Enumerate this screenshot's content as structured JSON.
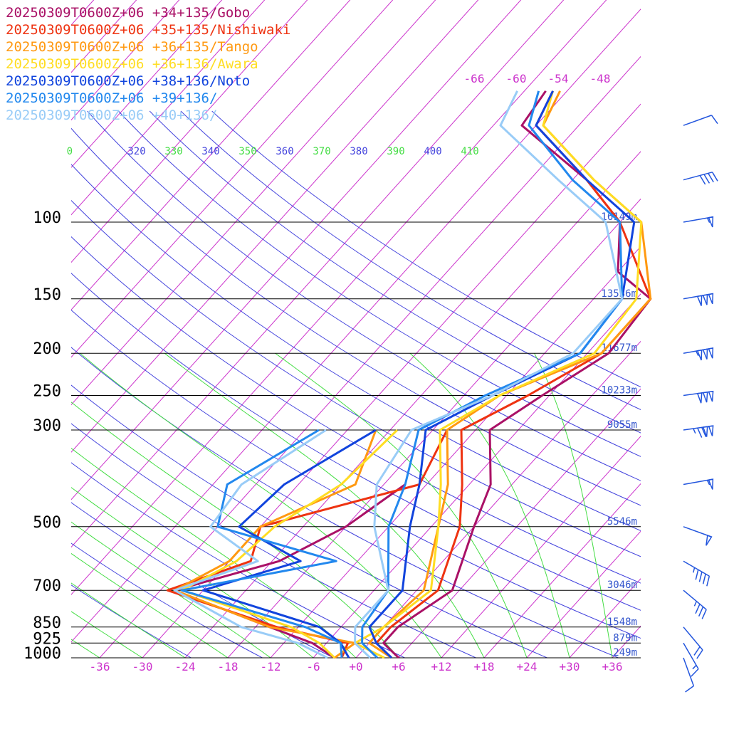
{
  "chart_data": {
    "type": "line",
    "legend_placement": "top-left",
    "x_unit_ticks": [
      "-36",
      "-30",
      "-24",
      "-18",
      "-12",
      "-6",
      "+0",
      "+6",
      "+12",
      "+18",
      "+24",
      "+30",
      "+36"
    ],
    "x_ticks": [
      -36,
      -30,
      -24,
      -18,
      -12,
      -6,
      0,
      6,
      12,
      18,
      24,
      30,
      36
    ],
    "top_ticks": [
      {
        "label": "-66",
        "value": -66
      },
      {
        "label": "-60",
        "value": -60
      },
      {
        "label": "-54",
        "value": -54
      },
      {
        "label": "-48",
        "value": -48
      }
    ],
    "pressure_levels": [
      {
        "p": 100,
        "label": "100",
        "height": "16149m"
      },
      {
        "p": 150,
        "label": "150",
        "height": "13536m"
      },
      {
        "p": 200,
        "label": "200",
        "height": "11677m"
      },
      {
        "p": 250,
        "label": "250",
        "height": "10233m"
      },
      {
        "p": 300,
        "label": "300",
        "height": "9055m"
      },
      {
        "p": 500,
        "label": "500",
        "height": "5546m"
      },
      {
        "p": 700,
        "label": "700",
        "height": "3046m"
      },
      {
        "p": 850,
        "label": "850",
        "height": "1548m"
      },
      {
        "p": 925,
        "label": "925",
        "height": "879m"
      },
      {
        "p": 1000,
        "label": "1000",
        "height": "249m"
      }
    ],
    "theta_labels": [
      "0",
      "320",
      "330",
      "340",
      "350",
      "360",
      "370",
      "380",
      "390",
      "400",
      "410"
    ],
    "colors": {
      "isotherm": "#cc33cc",
      "dry_adiabat": "#4444dd",
      "moist_adiabat": "#44dd44",
      "level_line": "#000000",
      "height_label": "#3355cc",
      "wind_barb": "#2255dd"
    },
    "series": [
      {
        "name": "20250309T0600Z+06 +34+135/Gobo",
        "color": "#aa1166",
        "T": [
          [
            1000,
            6
          ],
          [
            925,
            2
          ],
          [
            850,
            2
          ],
          [
            700,
            5
          ],
          [
            500,
            0
          ],
          [
            400,
            -3
          ],
          [
            300,
            -10
          ],
          [
            250,
            -7
          ],
          [
            200,
            -3
          ],
          [
            150,
            -4
          ],
          [
            130,
            -12
          ],
          [
            100,
            -18
          ],
          [
            80,
            -28
          ],
          [
            60,
            -44
          ],
          [
            50,
            -45
          ]
        ],
        "Td": [
          [
            1000,
            -3
          ],
          [
            925,
            -8
          ],
          [
            850,
            -16
          ],
          [
            700,
            -34
          ],
          [
            600,
            -23
          ],
          [
            500,
            -18
          ],
          [
            400,
            -15
          ]
        ]
      },
      {
        "name": "20250309T0600Z+06 +35+135/Nishiwaki",
        "color": "#ee3311",
        "T": [
          [
            1000,
            5
          ],
          [
            925,
            1
          ],
          [
            850,
            1
          ],
          [
            700,
            3
          ],
          [
            500,
            -2
          ],
          [
            400,
            -7
          ],
          [
            300,
            -14
          ],
          [
            250,
            -9
          ],
          [
            200,
            -4
          ],
          [
            150,
            -4
          ],
          [
            100,
            -18
          ],
          [
            80,
            -28
          ],
          [
            60,
            -42
          ],
          [
            50,
            -44
          ]
        ],
        "Td": [
          [
            1000,
            -2
          ],
          [
            925,
            -3
          ],
          [
            850,
            -15
          ],
          [
            700,
            -35
          ],
          [
            600,
            -27
          ],
          [
            500,
            -30
          ],
          [
            400,
            -13
          ],
          [
            300,
            -16
          ]
        ]
      },
      {
        "name": "20250309T0600Z+06 +36+135/Tango",
        "color": "#ff9911",
        "T": [
          [
            1000,
            5
          ],
          [
            925,
            0
          ],
          [
            850,
            0
          ],
          [
            700,
            1
          ],
          [
            500,
            -5
          ],
          [
            400,
            -9
          ],
          [
            300,
            -16
          ],
          [
            250,
            -13
          ],
          [
            200,
            -4
          ],
          [
            150,
            -4
          ],
          [
            100,
            -15
          ],
          [
            80,
            -27
          ],
          [
            60,
            -41
          ],
          [
            50,
            -43
          ]
        ],
        "Td": [
          [
            1000,
            -3
          ],
          [
            925,
            -2
          ],
          [
            850,
            -16
          ],
          [
            700,
            -34
          ],
          [
            600,
            -30
          ],
          [
            500,
            -30
          ],
          [
            400,
            -22
          ],
          [
            300,
            -26
          ]
        ]
      },
      {
        "name": "20250309T0600Z+06 +36+136/Awara",
        "color": "#ffdd22",
        "T": [
          [
            1000,
            4
          ],
          [
            925,
            -2
          ],
          [
            850,
            0
          ],
          [
            700,
            2
          ],
          [
            500,
            -5
          ],
          [
            400,
            -10
          ],
          [
            300,
            -17
          ],
          [
            250,
            -13
          ],
          [
            200,
            -5
          ],
          [
            150,
            -6
          ],
          [
            100,
            -15
          ],
          [
            80,
            -27
          ],
          [
            60,
            -41
          ],
          [
            50,
            -44
          ]
        ],
        "Td": [
          [
            1000,
            -3
          ],
          [
            925,
            -7
          ],
          [
            850,
            -13
          ],
          [
            700,
            -33
          ],
          [
            600,
            -29
          ],
          [
            500,
            -28
          ],
          [
            400,
            -24
          ],
          [
            300,
            -23
          ]
        ]
      },
      {
        "name": "20250309T0600Z+06 +38+136/Noto",
        "color": "#1144dd",
        "T": [
          [
            1000,
            5
          ],
          [
            925,
            1
          ],
          [
            850,
            -2
          ],
          [
            700,
            -2
          ],
          [
            500,
            -9
          ],
          [
            400,
            -13
          ],
          [
            300,
            -19
          ],
          [
            250,
            -14
          ],
          [
            200,
            -7
          ],
          [
            150,
            -8
          ],
          [
            100,
            -16
          ],
          [
            80,
            -28
          ],
          [
            60,
            -42
          ],
          [
            50,
            -44
          ]
        ],
        "Td": [
          [
            1000,
            -1
          ],
          [
            925,
            -4
          ],
          [
            850,
            -9
          ],
          [
            700,
            -30
          ],
          [
            600,
            -20
          ],
          [
            500,
            -33
          ],
          [
            400,
            -32
          ],
          [
            300,
            -26
          ]
        ]
      },
      {
        "name": "20250309T0600Z+06 +39+136/",
        "color": "#2288ee",
        "T": [
          [
            1000,
            3
          ],
          [
            925,
            -1
          ],
          [
            850,
            -3
          ],
          [
            700,
            -4
          ],
          [
            500,
            -12
          ],
          [
            400,
            -15
          ],
          [
            300,
            -20
          ],
          [
            250,
            -15
          ],
          [
            200,
            -7
          ],
          [
            150,
            -8
          ],
          [
            100,
            -18
          ],
          [
            80,
            -30
          ],
          [
            60,
            -43
          ],
          [
            50,
            -46
          ]
        ],
        "Td": [
          [
            1000,
            -2
          ],
          [
            925,
            -4
          ],
          [
            850,
            -11
          ],
          [
            700,
            -33
          ],
          [
            600,
            -15
          ],
          [
            500,
            -36
          ],
          [
            400,
            -40
          ],
          [
            300,
            -34
          ]
        ]
      },
      {
        "name": "20250309T0600Z+06 +40+136/",
        "color": "#99ccf7",
        "T": [
          [
            1000,
            2
          ],
          [
            925,
            -2
          ],
          [
            850,
            -4
          ],
          [
            700,
            -4
          ],
          [
            500,
            -14
          ],
          [
            400,
            -19
          ],
          [
            300,
            -21
          ],
          [
            250,
            -14
          ],
          [
            200,
            -8
          ],
          [
            150,
            -8
          ],
          [
            100,
            -20
          ],
          [
            80,
            -32
          ],
          [
            60,
            -47
          ],
          [
            50,
            -49
          ]
        ],
        "Td": [
          [
            1000,
            -4
          ],
          [
            925,
            -10
          ],
          [
            850,
            -20
          ],
          [
            700,
            -34
          ],
          [
            600,
            -26
          ],
          [
            500,
            -37
          ],
          [
            400,
            -38
          ],
          [
            300,
            -33
          ]
        ]
      }
    ],
    "wind_barbs": [
      {
        "p": 60,
        "speed": 10,
        "dir": 250
      },
      {
        "p": 80,
        "speed": 40,
        "dir": 255
      },
      {
        "p": 100,
        "speed": 55,
        "dir": 260
      },
      {
        "p": 150,
        "speed": 150,
        "dir": 260
      },
      {
        "p": 200,
        "speed": 155,
        "dir": 260
      },
      {
        "p": 250,
        "speed": 150,
        "dir": 262
      },
      {
        "p": 300,
        "speed": 125,
        "dir": 262
      },
      {
        "p": 400,
        "speed": 55,
        "dir": 260
      },
      {
        "p": 500,
        "speed": 50,
        "dir": 290
      },
      {
        "p": 600,
        "speed": 45,
        "dir": 300
      },
      {
        "p": 700,
        "speed": 35,
        "dir": 310
      },
      {
        "p": 850,
        "speed": 20,
        "dir": 320
      },
      {
        "p": 925,
        "speed": 15,
        "dir": 330
      },
      {
        "p": 1000,
        "speed": 10,
        "dir": 340
      }
    ]
  }
}
